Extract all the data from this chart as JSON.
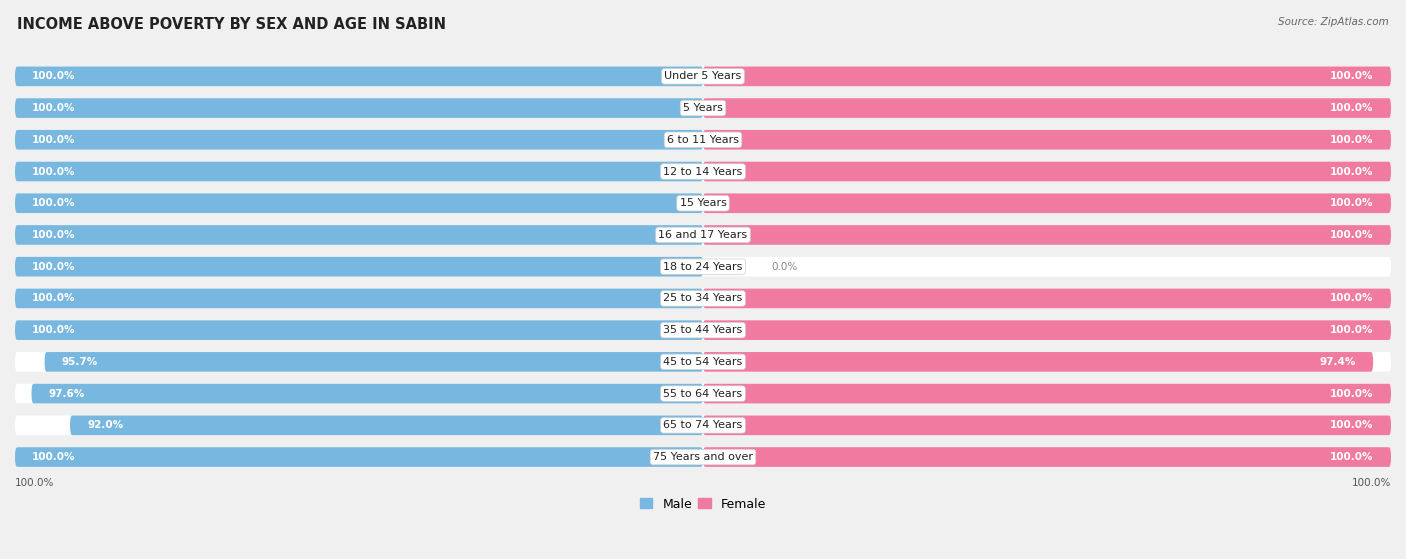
{
  "title": "INCOME ABOVE POVERTY BY SEX AND AGE IN SABIN",
  "source": "Source: ZipAtlas.com",
  "categories": [
    "Under 5 Years",
    "5 Years",
    "6 to 11 Years",
    "12 to 14 Years",
    "15 Years",
    "16 and 17 Years",
    "18 to 24 Years",
    "25 to 34 Years",
    "35 to 44 Years",
    "45 to 54 Years",
    "55 to 64 Years",
    "65 to 74 Years",
    "75 Years and over"
  ],
  "male_values": [
    100.0,
    100.0,
    100.0,
    100.0,
    100.0,
    100.0,
    100.0,
    100.0,
    100.0,
    95.7,
    97.6,
    92.0,
    100.0
  ],
  "female_values": [
    100.0,
    100.0,
    100.0,
    100.0,
    100.0,
    100.0,
    0.0,
    100.0,
    100.0,
    97.4,
    100.0,
    100.0,
    100.0
  ],
  "male_color": "#78b8e0",
  "female_color": "#f07aa0",
  "bg_color": "#f0f0f0",
  "row_bg_color": "#ffffff",
  "title_fontsize": 10.5,
  "label_fontsize": 8,
  "value_fontsize": 7.5,
  "bar_height": 0.62,
  "xlim": 100
}
